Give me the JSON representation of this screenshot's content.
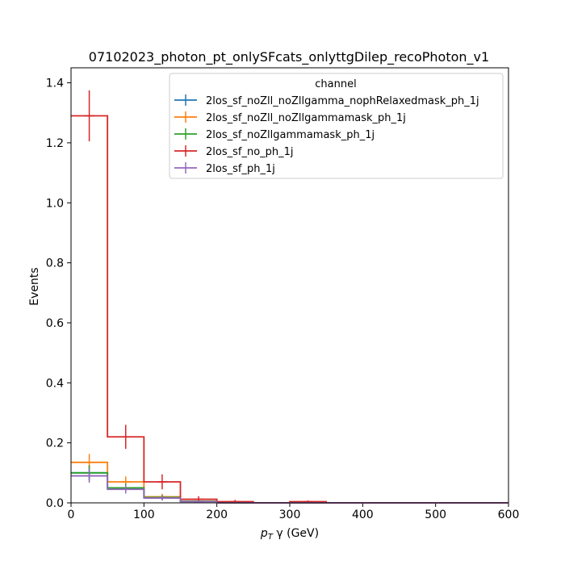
{
  "chart_data": {
    "type": "step-histogram",
    "title": "07102023_photon_pt_onlySFcats_onlyttgDilep_recoPhoton_v1",
    "xlabel": "p_T γ (GeV)",
    "ylabel": "Events",
    "xlim": [
      0,
      600
    ],
    "ylim": [
      0,
      1.45
    ],
    "xticks": [
      0,
      100,
      200,
      300,
      400,
      500,
      600
    ],
    "yticks": [
      0.0,
      0.2,
      0.4,
      0.6,
      0.8,
      1.0,
      1.2,
      1.4
    ],
    "grid": false,
    "legend": {
      "title": "channel",
      "placement": "top-right"
    },
    "bin_edges": [
      0,
      50,
      100,
      150,
      200,
      250,
      300,
      350,
      400,
      450,
      500,
      550,
      600
    ],
    "series": [
      {
        "name": "2los_sf_noZll_noZllgamma_nophRelaxedmask_ph_1j",
        "color": "#1f77b4",
        "values": [
          0.1,
          0.05,
          0.018,
          0.005,
          0.0,
          0.0,
          0.0,
          0.0,
          0.0,
          0.0,
          0.0,
          0.0
        ],
        "errors": [
          0.025,
          0.015,
          0.008,
          0.004,
          0.0,
          0.0,
          0.0,
          0.0,
          0.0,
          0.0,
          0.0,
          0.0
        ]
      },
      {
        "name": "2los_sf_noZll_noZllgammamask_ph_1j",
        "color": "#ff7f0e",
        "values": [
          0.135,
          0.07,
          0.02,
          0.005,
          0.0,
          0.0,
          0.0,
          0.0,
          0.0,
          0.0,
          0.0,
          0.0
        ],
        "errors": [
          0.028,
          0.018,
          0.01,
          0.004,
          0.0,
          0.0,
          0.0,
          0.0,
          0.0,
          0.0,
          0.0,
          0.0
        ]
      },
      {
        "name": "2los_sf_noZllgammamask_ph_1j",
        "color": "#2ca02c",
        "values": [
          0.1,
          0.05,
          0.018,
          0.005,
          0.0,
          0.0,
          0.0,
          0.0,
          0.0,
          0.0,
          0.0,
          0.0
        ],
        "errors": [
          0.025,
          0.015,
          0.008,
          0.004,
          0.0,
          0.0,
          0.0,
          0.0,
          0.0,
          0.0,
          0.0,
          0.0
        ]
      },
      {
        "name": "2los_sf_no_ph_1j",
        "color": "#d62728",
        "values": [
          1.29,
          0.22,
          0.07,
          0.012,
          0.004,
          0.0,
          0.004,
          0.0,
          0.0,
          0.0,
          0.0,
          0.0
        ],
        "errors": [
          0.085,
          0.04,
          0.025,
          0.01,
          0.006,
          0.0,
          0.004,
          0.0,
          0.0,
          0.0,
          0.0,
          0.0
        ]
      },
      {
        "name": "2los_sf_ph_1j",
        "color": "#9467bd",
        "values": [
          0.09,
          0.045,
          0.016,
          0.004,
          0.0,
          0.0,
          0.0,
          0.0,
          0.0,
          0.0,
          0.0,
          0.0
        ],
        "errors": [
          0.023,
          0.014,
          0.008,
          0.004,
          0.0,
          0.0,
          0.0,
          0.0,
          0.0,
          0.0,
          0.0,
          0.0
        ]
      }
    ]
  }
}
